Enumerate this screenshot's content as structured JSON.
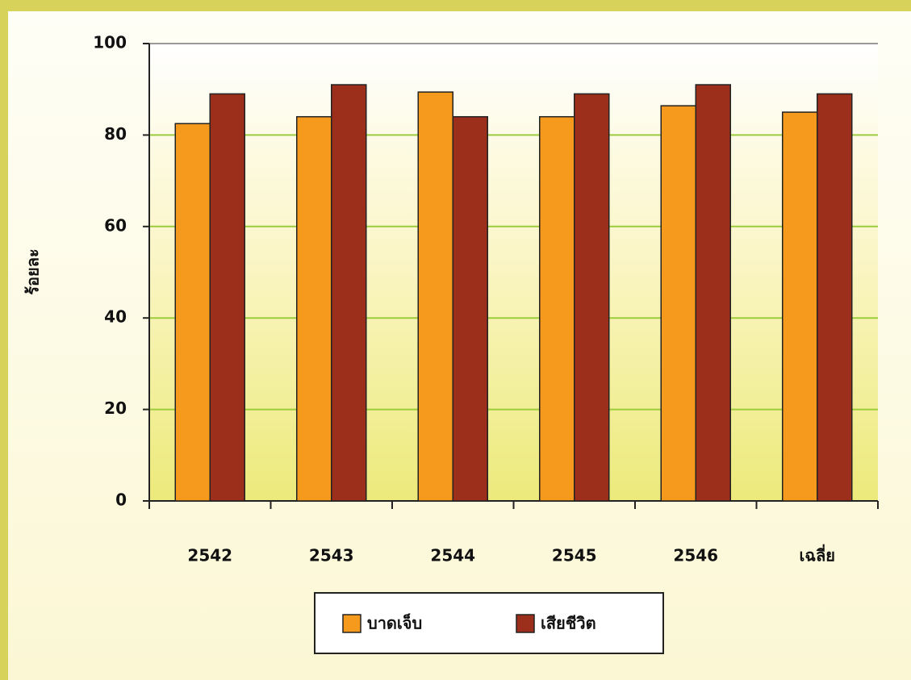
{
  "chart_data": {
    "type": "bar",
    "y_label": "ร้อยละ",
    "categories": [
      "2542",
      "2543",
      "2544",
      "2545",
      "2546",
      "เฉลี่ย"
    ],
    "series": [
      {
        "name": "บาดเจ็บ",
        "color": "#f59a1c",
        "values": [
          82.5,
          84,
          89.4,
          84,
          86.4,
          85
        ]
      },
      {
        "name": "เสียชีวิต",
        "color": "#9b2f1c",
        "values": [
          89,
          91,
          84,
          89,
          91,
          89
        ]
      }
    ],
    "ylim": [
      0,
      100
    ],
    "yticks": [
      0,
      20,
      40,
      60,
      80,
      100
    ],
    "grid": true,
    "legend": "bottom"
  }
}
